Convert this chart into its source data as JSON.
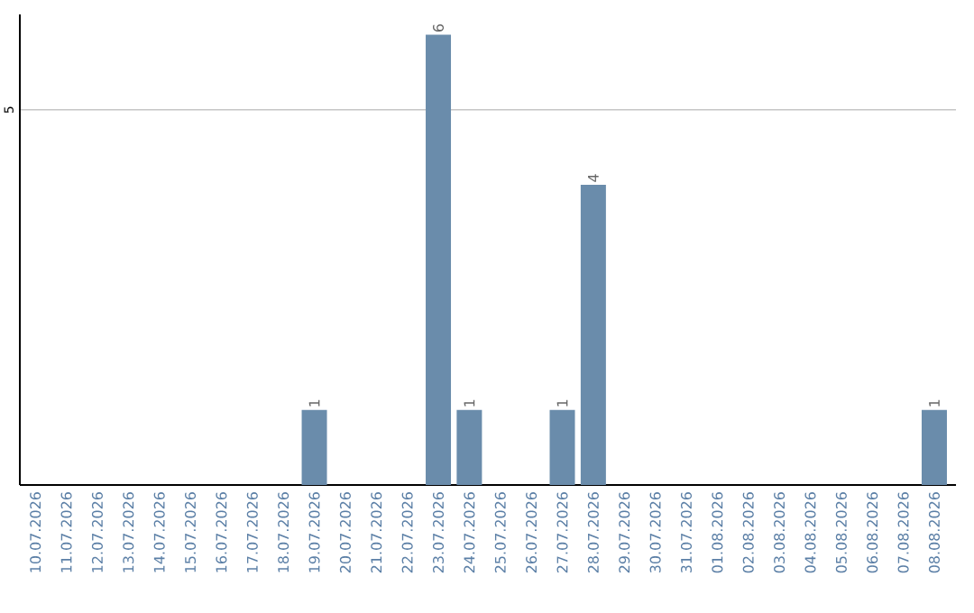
{
  "chart_data": {
    "type": "bar",
    "categories": [
      "10.07.2026",
      "11.07.2026",
      "12.07.2026",
      "13.07.2026",
      "14.07.2026",
      "15.07.2026",
      "16.07.2026",
      "17.07.2026",
      "18.07.2026",
      "19.07.2026",
      "20.07.2026",
      "21.07.2026",
      "22.07.2026",
      "23.07.2026",
      "24.07.2026",
      "25.07.2026",
      "26.07.2026",
      "27.07.2026",
      "28.07.2026",
      "29.07.2026",
      "30.07.2026",
      "31.07.2026",
      "01.08.2026",
      "02.08.2026",
      "03.08.2026",
      "04.08.2026",
      "05.08.2026",
      "06.08.2026",
      "07.08.2026",
      "08.08.2026"
    ],
    "values": [
      0,
      0,
      0,
      0,
      0,
      0,
      0,
      0,
      0,
      1,
      0,
      0,
      0,
      6,
      1,
      0,
      0,
      1,
      4,
      0,
      0,
      0,
      0,
      0,
      0,
      0,
      0,
      0,
      0,
      1
    ],
    "value_labels": [
      null,
      null,
      null,
      null,
      null,
      null,
      null,
      null,
      null,
      "1",
      null,
      null,
      null,
      "6",
      "1",
      null,
      null,
      "1",
      "4",
      null,
      null,
      null,
      null,
      null,
      null,
      null,
      null,
      null,
      null,
      "1"
    ],
    "color": "#6a8cab",
    "ylim": [
      0,
      6.27
    ],
    "yticks": [
      5
    ],
    "grid": "y"
  }
}
